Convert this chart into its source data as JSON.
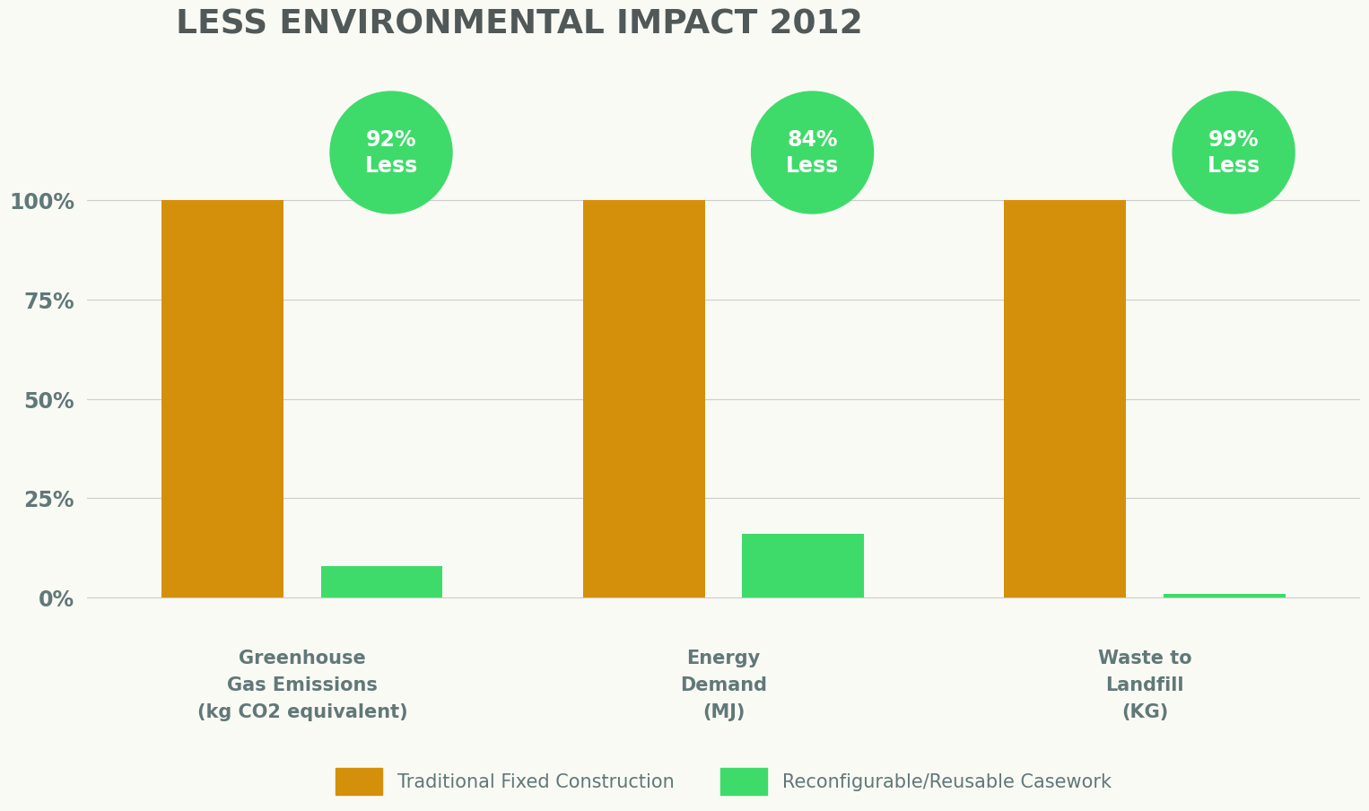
{
  "title": "LESS ENVIRONMENTAL IMPACT 2012",
  "background_color": "#fafaf5",
  "categories": [
    "Greenhouse\nGas Emissions\n(kg CO2 equivalent)",
    "Energy\nDemand\n(MJ)",
    "Waste to\nLandfill\n(KG)"
  ],
  "traditional_values": [
    100,
    100,
    100
  ],
  "reusable_values": [
    8,
    16,
    1
  ],
  "bubble_labels": [
    "92%\nLess",
    "84%\nLess",
    "99%\nLess"
  ],
  "bar_color_traditional": "#D4900A",
  "bar_color_reusable": "#3EDB6A",
  "bubble_color": "#3EDB6A",
  "text_color": "#607878",
  "title_color": "#505858",
  "ytick_labels": [
    "0%",
    "25%",
    "50%",
    "75%",
    "100%"
  ],
  "ytick_values": [
    0,
    25,
    50,
    75,
    100
  ],
  "legend_label_trad": "Traditional Fixed Construction",
  "legend_label_reuse": "Reconfigurable/Reusable Casework",
  "bar_width": 0.13,
  "group_positions": [
    0.25,
    0.7,
    1.15
  ]
}
